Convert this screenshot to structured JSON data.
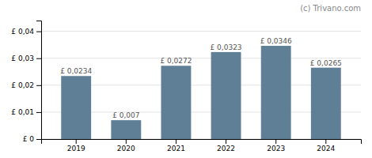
{
  "chart_data": {
    "type": "bar",
    "categories": [
      "2019",
      "2020",
      "2021",
      "2022",
      "2023",
      "2024"
    ],
    "values": [
      0.0234,
      0.007,
      0.0272,
      0.0323,
      0.0346,
      0.0265
    ],
    "value_labels": [
      "£ 0,0234",
      "£ 0,007",
      "£ 0,0272",
      "£ 0,0323",
      "£ 0,0346",
      "£ 0,0265"
    ],
    "data_labels": true,
    "color": "#5f7f96",
    "ylim": [
      0,
      0.044
    ],
    "yticks": [
      {
        "value": 0,
        "label": "£ 0"
      },
      {
        "value": 0.01,
        "label": "£ 0,01"
      },
      {
        "value": 0.02,
        "label": "£ 0,02"
      },
      {
        "value": 0.03,
        "label": "£ 0,03"
      },
      {
        "value": 0.04,
        "label": "£ 0,04"
      }
    ],
    "grid": true,
    "annotations": [
      "(c) Trivano.com"
    ]
  }
}
